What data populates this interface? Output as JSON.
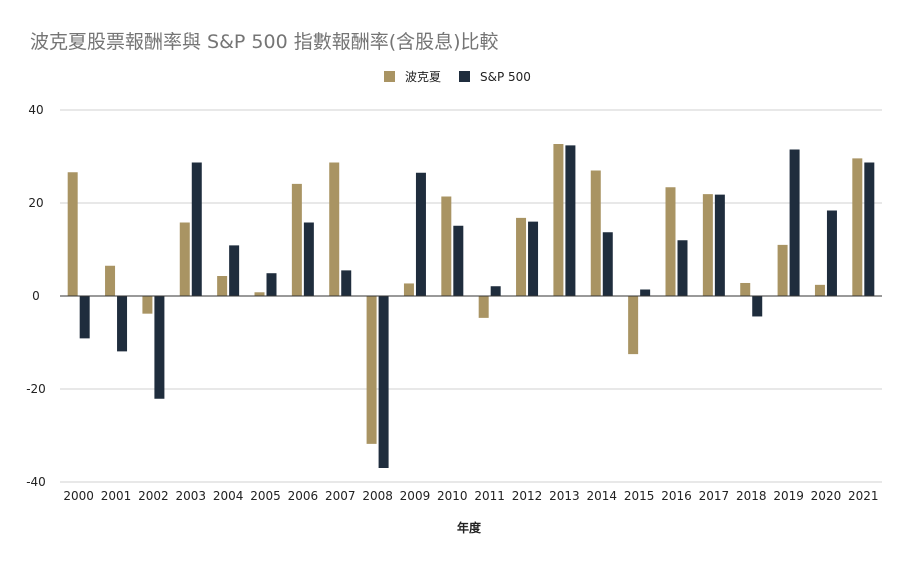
{
  "colors": {
    "series1": "#a99463",
    "series2": "#1f2d3d"
  },
  "chart_data": {
    "type": "bar",
    "title": "波克夏股票報酬率與 S&P 500 指數報酬率(含股息)比較",
    "xlabel": "年度",
    "ylabel": "",
    "ylim": [
      -40,
      40
    ],
    "yticks": [
      -40,
      -20,
      0,
      20,
      40
    ],
    "grid": true,
    "legend_position": "top-center",
    "categories": [
      "2000",
      "2001",
      "2002",
      "2003",
      "2004",
      "2005",
      "2006",
      "2007",
      "2008",
      "2009",
      "2010",
      "2011",
      "2012",
      "2013",
      "2014",
      "2015",
      "2016",
      "2017",
      "2018",
      "2019",
      "2020",
      "2021"
    ],
    "series": [
      {
        "name": "波克夏",
        "values": [
          26.6,
          6.5,
          -3.8,
          15.8,
          4.3,
          0.8,
          24.1,
          28.7,
          -31.8,
          2.7,
          21.4,
          -4.7,
          16.8,
          32.7,
          27.0,
          -12.5,
          23.4,
          21.9,
          2.8,
          11.0,
          2.4,
          29.6
        ]
      },
      {
        "name": "S&P 500",
        "values": [
          -9.1,
          -11.9,
          -22.1,
          28.7,
          10.9,
          4.9,
          15.8,
          5.5,
          -37.0,
          26.5,
          15.1,
          2.1,
          16.0,
          32.4,
          13.7,
          1.4,
          12.0,
          21.8,
          -4.4,
          31.5,
          18.4,
          28.7
        ]
      }
    ]
  }
}
